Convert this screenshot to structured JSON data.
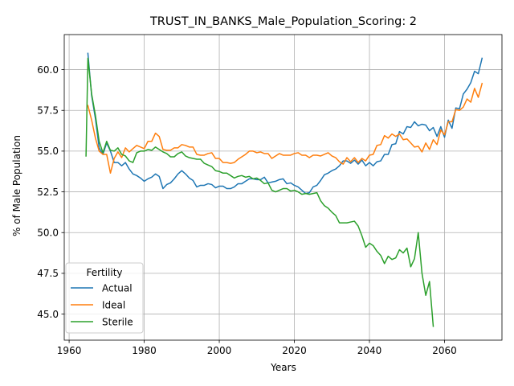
{
  "chart_data": {
    "type": "line",
    "title": "TRUST_IN_BANKS_Male_Population_Scoring: 2",
    "xlabel": "Years",
    "ylabel": "% of Male Population",
    "xlim": [
      1958.7,
      2075.3
    ],
    "ylim": [
      43.4,
      62.15
    ],
    "xticks": [
      1960,
      1980,
      2000,
      2020,
      2040,
      2060
    ],
    "yticks": [
      45.0,
      47.5,
      50.0,
      52.5,
      55.0,
      57.5,
      60.0
    ],
    "xtick_labels": [
      "1960",
      "1980",
      "2000",
      "2020",
      "2040",
      "2060"
    ],
    "ytick_labels": [
      "45.0",
      "47.5",
      "50.0",
      "52.5",
      "55.0",
      "57.5",
      "60.0"
    ],
    "grid": true,
    "legend": {
      "title": "Fertility",
      "position": "lower-left"
    },
    "series": [
      {
        "name": "Actual",
        "color": "#1f77b4",
        "x": [
          1965,
          1966,
          1967,
          1968,
          1969,
          1970,
          1971,
          1972,
          1973,
          1974,
          1975,
          1976,
          1977,
          1978,
          1979,
          1980,
          1981,
          1982,
          1983,
          1984,
          1985,
          1986,
          1987,
          1988,
          1989,
          1990,
          1991,
          1992,
          1993,
          1994,
          1995,
          1996,
          1997,
          1998,
          1999,
          2000,
          2001,
          2002,
          2003,
          2004,
          2005,
          2006,
          2007,
          2008,
          2009,
          2010,
          2011,
          2012,
          2013,
          2014,
          2015,
          2016,
          2017,
          2018,
          2019,
          2020,
          2021,
          2022,
          2023,
          2024,
          2025,
          2026,
          2027,
          2028,
          2029,
          2030,
          2031,
          2032,
          2033,
          2034,
          2035,
          2036,
          2037,
          2038,
          2039,
          2040,
          2041,
          2042,
          2043,
          2044,
          2045,
          2046,
          2047,
          2048,
          2049,
          2050,
          2051,
          2052,
          2053,
          2054,
          2055,
          2056,
          2057,
          2058,
          2059,
          2060,
          2061,
          2062,
          2063,
          2064,
          2065,
          2066,
          2067,
          2068,
          2069,
          2070
        ],
        "y": [
          61.0,
          58.4,
          57.0,
          55.2,
          54.8,
          55.5,
          55.0,
          54.3,
          54.3,
          54.1,
          54.3,
          53.9,
          53.6,
          53.5,
          53.35,
          53.15,
          53.3,
          53.4,
          53.6,
          53.45,
          52.7,
          52.95,
          53.05,
          53.3,
          53.6,
          53.8,
          53.6,
          53.35,
          53.2,
          52.8,
          52.9,
          52.9,
          53.0,
          52.95,
          52.75,
          52.85,
          52.85,
          52.7,
          52.7,
          52.8,
          53.0,
          53.0,
          53.15,
          53.3,
          53.3,
          53.25,
          53.25,
          53.4,
          53.05,
          53.1,
          53.15,
          53.25,
          53.3,
          53.0,
          53.05,
          52.9,
          52.8,
          52.6,
          52.4,
          52.45,
          52.8,
          52.9,
          53.2,
          53.55,
          53.65,
          53.8,
          53.9,
          54.1,
          54.4,
          54.4,
          54.25,
          54.45,
          54.2,
          54.45,
          54.1,
          54.3,
          54.1,
          54.35,
          54.4,
          54.8,
          54.8,
          55.4,
          55.45,
          56.2,
          56.05,
          56.5,
          56.45,
          56.8,
          56.55,
          56.65,
          56.6,
          56.25,
          56.45,
          55.9,
          56.5,
          55.85,
          56.9,
          56.4,
          57.65,
          57.6,
          58.5,
          58.8,
          59.2,
          59.9,
          59.75,
          60.7
        ]
      },
      {
        "name": "Ideal",
        "color": "#ff7f0e",
        "x": [
          1965,
          1966,
          1967,
          1968,
          1969,
          1970,
          1971,
          1972,
          1973,
          1974,
          1975,
          1976,
          1977,
          1978,
          1979,
          1980,
          1981,
          1982,
          1983,
          1984,
          1985,
          1986,
          1987,
          1988,
          1989,
          1990,
          1991,
          1992,
          1993,
          1994,
          1995,
          1996,
          1997,
          1998,
          1999,
          2000,
          2001,
          2002,
          2003,
          2004,
          2005,
          2006,
          2007,
          2008,
          2009,
          2010,
          2011,
          2012,
          2013,
          2014,
          2015,
          2016,
          2017,
          2018,
          2019,
          2020,
          2021,
          2022,
          2023,
          2024,
          2025,
          2026,
          2027,
          2028,
          2029,
          2030,
          2031,
          2032,
          2033,
          2034,
          2035,
          2036,
          2037,
          2038,
          2039,
          2040,
          2041,
          2042,
          2043,
          2044,
          2045,
          2046,
          2047,
          2048,
          2049,
          2050,
          2051,
          2052,
          2053,
          2054,
          2055,
          2056,
          2057,
          2058,
          2059,
          2060,
          2061,
          2062,
          2063,
          2064,
          2065,
          2066,
          2067,
          2068,
          2069,
          2070
        ],
        "y": [
          57.8,
          56.9,
          55.8,
          55.0,
          54.8,
          54.8,
          53.65,
          54.55,
          54.95,
          54.6,
          55.2,
          54.95,
          55.15,
          55.35,
          55.25,
          55.15,
          55.6,
          55.6,
          56.1,
          55.9,
          55.1,
          55.05,
          55.05,
          55.2,
          55.2,
          55.4,
          55.35,
          55.25,
          55.25,
          54.8,
          54.75,
          54.75,
          54.85,
          54.9,
          54.55,
          54.55,
          54.3,
          54.3,
          54.25,
          54.3,
          54.5,
          54.65,
          54.8,
          55.0,
          55.0,
          54.9,
          54.95,
          54.85,
          54.85,
          54.55,
          54.7,
          54.85,
          54.75,
          54.75,
          54.75,
          54.85,
          54.9,
          54.75,
          54.75,
          54.6,
          54.75,
          54.75,
          54.7,
          54.8,
          54.9,
          54.7,
          54.6,
          54.35,
          54.2,
          54.6,
          54.35,
          54.6,
          54.3,
          54.55,
          54.4,
          54.75,
          54.8,
          55.35,
          55.4,
          55.95,
          55.8,
          56.05,
          55.9,
          56.05,
          55.7,
          55.75,
          55.5,
          55.25,
          55.3,
          54.95,
          55.5,
          55.1,
          55.7,
          55.4,
          56.3,
          56.0,
          56.8,
          56.8,
          57.55,
          57.5,
          57.7,
          58.2,
          58.0,
          58.85,
          58.3,
          59.15
        ]
      },
      {
        "name": "Sterile",
        "color": "#2ca02c",
        "x": [
          1964.5,
          1965,
          1966,
          1967,
          1968,
          1969,
          1970,
          1971,
          1972,
          1973,
          1974,
          1975,
          1976,
          1977,
          1978,
          1979,
          1980,
          1981,
          1982,
          1983,
          1984,
          1985,
          1986,
          1987,
          1988,
          1989,
          1990,
          1991,
          1992,
          1993,
          1994,
          1995,
          1996,
          1997,
          1998,
          1999,
          2000,
          2001,
          2002,
          2003,
          2004,
          2005,
          2006,
          2007,
          2008,
          2009,
          2010,
          2011,
          2012,
          2013,
          2014,
          2015,
          2016,
          2017,
          2018,
          2019,
          2020,
          2021,
          2022,
          2023,
          2024,
          2025,
          2026,
          2027,
          2028,
          2029,
          2030,
          2031,
          2032,
          2033,
          2034,
          2035,
          2036,
          2037,
          2038,
          2039,
          2040,
          2041,
          2042,
          2043,
          2044,
          2045,
          2046,
          2047,
          2048,
          2049,
          2050,
          2051,
          2052,
          2053,
          2054,
          2055,
          2056,
          2057
        ],
        "y": [
          54.7,
          60.7,
          58.5,
          57.2,
          55.6,
          54.9,
          55.6,
          55.05,
          55.0,
          55.2,
          54.8,
          54.7,
          54.4,
          54.3,
          54.9,
          55.0,
          55.0,
          55.1,
          55.05,
          55.25,
          55.1,
          54.95,
          54.85,
          54.65,
          54.65,
          54.85,
          54.95,
          54.7,
          54.6,
          54.55,
          54.5,
          54.5,
          54.25,
          54.15,
          54.05,
          53.8,
          53.75,
          53.65,
          53.65,
          53.5,
          53.35,
          53.45,
          53.5,
          53.4,
          53.45,
          53.3,
          53.35,
          53.2,
          53.0,
          53.05,
          52.6,
          52.5,
          52.6,
          52.7,
          52.7,
          52.55,
          52.6,
          52.5,
          52.35,
          52.4,
          52.35,
          52.4,
          52.45,
          51.95,
          51.65,
          51.5,
          51.25,
          51.05,
          50.6,
          50.6,
          50.6,
          50.65,
          50.7,
          50.4,
          49.8,
          49.1,
          49.35,
          49.2,
          48.85,
          48.6,
          48.1,
          48.55,
          48.35,
          48.45,
          48.95,
          48.75,
          49.05,
          47.9,
          48.4,
          50.0,
          47.5,
          46.15,
          47.0,
          44.25
        ]
      }
    ]
  }
}
